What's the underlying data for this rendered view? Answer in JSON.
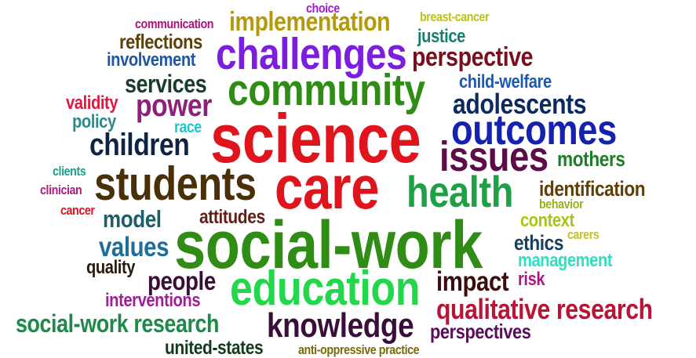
{
  "words": [
    {
      "text": "choice",
      "color": "#a11dd4"
    },
    {
      "text": "communication",
      "color": "#b0157f"
    },
    {
      "text": "implementation",
      "color": "#b39a0c"
    },
    {
      "text": "breast-cancer",
      "color": "#bcc21a"
    },
    {
      "text": "reflections",
      "color": "#5d3f08"
    },
    {
      "text": "justice",
      "color": "#147f74"
    },
    {
      "text": "challenges",
      "color": "#7c1ee0"
    },
    {
      "text": "involvement",
      "color": "#1e56a6"
    },
    {
      "text": "perspective",
      "color": "#7a0f1c"
    },
    {
      "text": "community",
      "color": "#2f8c14"
    },
    {
      "text": "services",
      "color": "#173e2a"
    },
    {
      "text": "child-welfare",
      "color": "#1e5ab0"
    },
    {
      "text": "validity",
      "color": "#e0183f"
    },
    {
      "text": "power",
      "color": "#8e1f7a"
    },
    {
      "text": "adolescents",
      "color": "#0c2a5e"
    },
    {
      "text": "policy",
      "color": "#2a8a8a"
    },
    {
      "text": "race",
      "color": "#1cc6cc"
    },
    {
      "text": "science",
      "color": "#e0141c"
    },
    {
      "text": "outcomes",
      "color": "#1521b0"
    },
    {
      "text": "children",
      "color": "#0e2442"
    },
    {
      "text": "issues",
      "color": "#5c0c46"
    },
    {
      "text": "mothers",
      "color": "#1e7e28"
    },
    {
      "text": "clients",
      "color": "#16a08a"
    },
    {
      "text": "students",
      "color": "#4a3008"
    },
    {
      "text": "care",
      "color": "#e0141c"
    },
    {
      "text": "health",
      "color": "#1fa046"
    },
    {
      "text": "identification",
      "color": "#5d3f08"
    },
    {
      "text": "clinician",
      "color": "#b01e82"
    },
    {
      "text": "behavior",
      "color": "#9ab216"
    },
    {
      "text": "cancer",
      "color": "#e0141c"
    },
    {
      "text": "model",
      "color": "#1d5e6c"
    },
    {
      "text": "attitudes",
      "color": "#602018"
    },
    {
      "text": "context",
      "color": "#a5c619"
    },
    {
      "text": "carers",
      "color": "#c6c02a"
    },
    {
      "text": "social-work",
      "color": "#2f8c14"
    },
    {
      "text": "values",
      "color": "#1e6e9c"
    },
    {
      "text": "ethics",
      "color": "#17405a"
    },
    {
      "text": "management",
      "color": "#2ee0c0"
    },
    {
      "text": "quality",
      "color": "#2a1a0c"
    },
    {
      "text": "people",
      "color": "#3a0e3a"
    },
    {
      "text": "risk",
      "color": "#b01580"
    },
    {
      "text": "education",
      "color": "#22d84a"
    },
    {
      "text": "impact",
      "color": "#3a0e0e"
    },
    {
      "text": "interventions",
      "color": "#a01e96"
    },
    {
      "text": "qualitative research",
      "color": "#b81436"
    },
    {
      "text": "social-work research",
      "color": "#1e8a4a"
    },
    {
      "text": "knowledge",
      "color": "#3a0e3a"
    },
    {
      "text": "perspectives",
      "color": "#5a0e5a"
    },
    {
      "text": "united-states",
      "color": "#143a1e"
    },
    {
      "text": "anti-oppressive practice",
      "color": "#7a6a0a"
    }
  ]
}
